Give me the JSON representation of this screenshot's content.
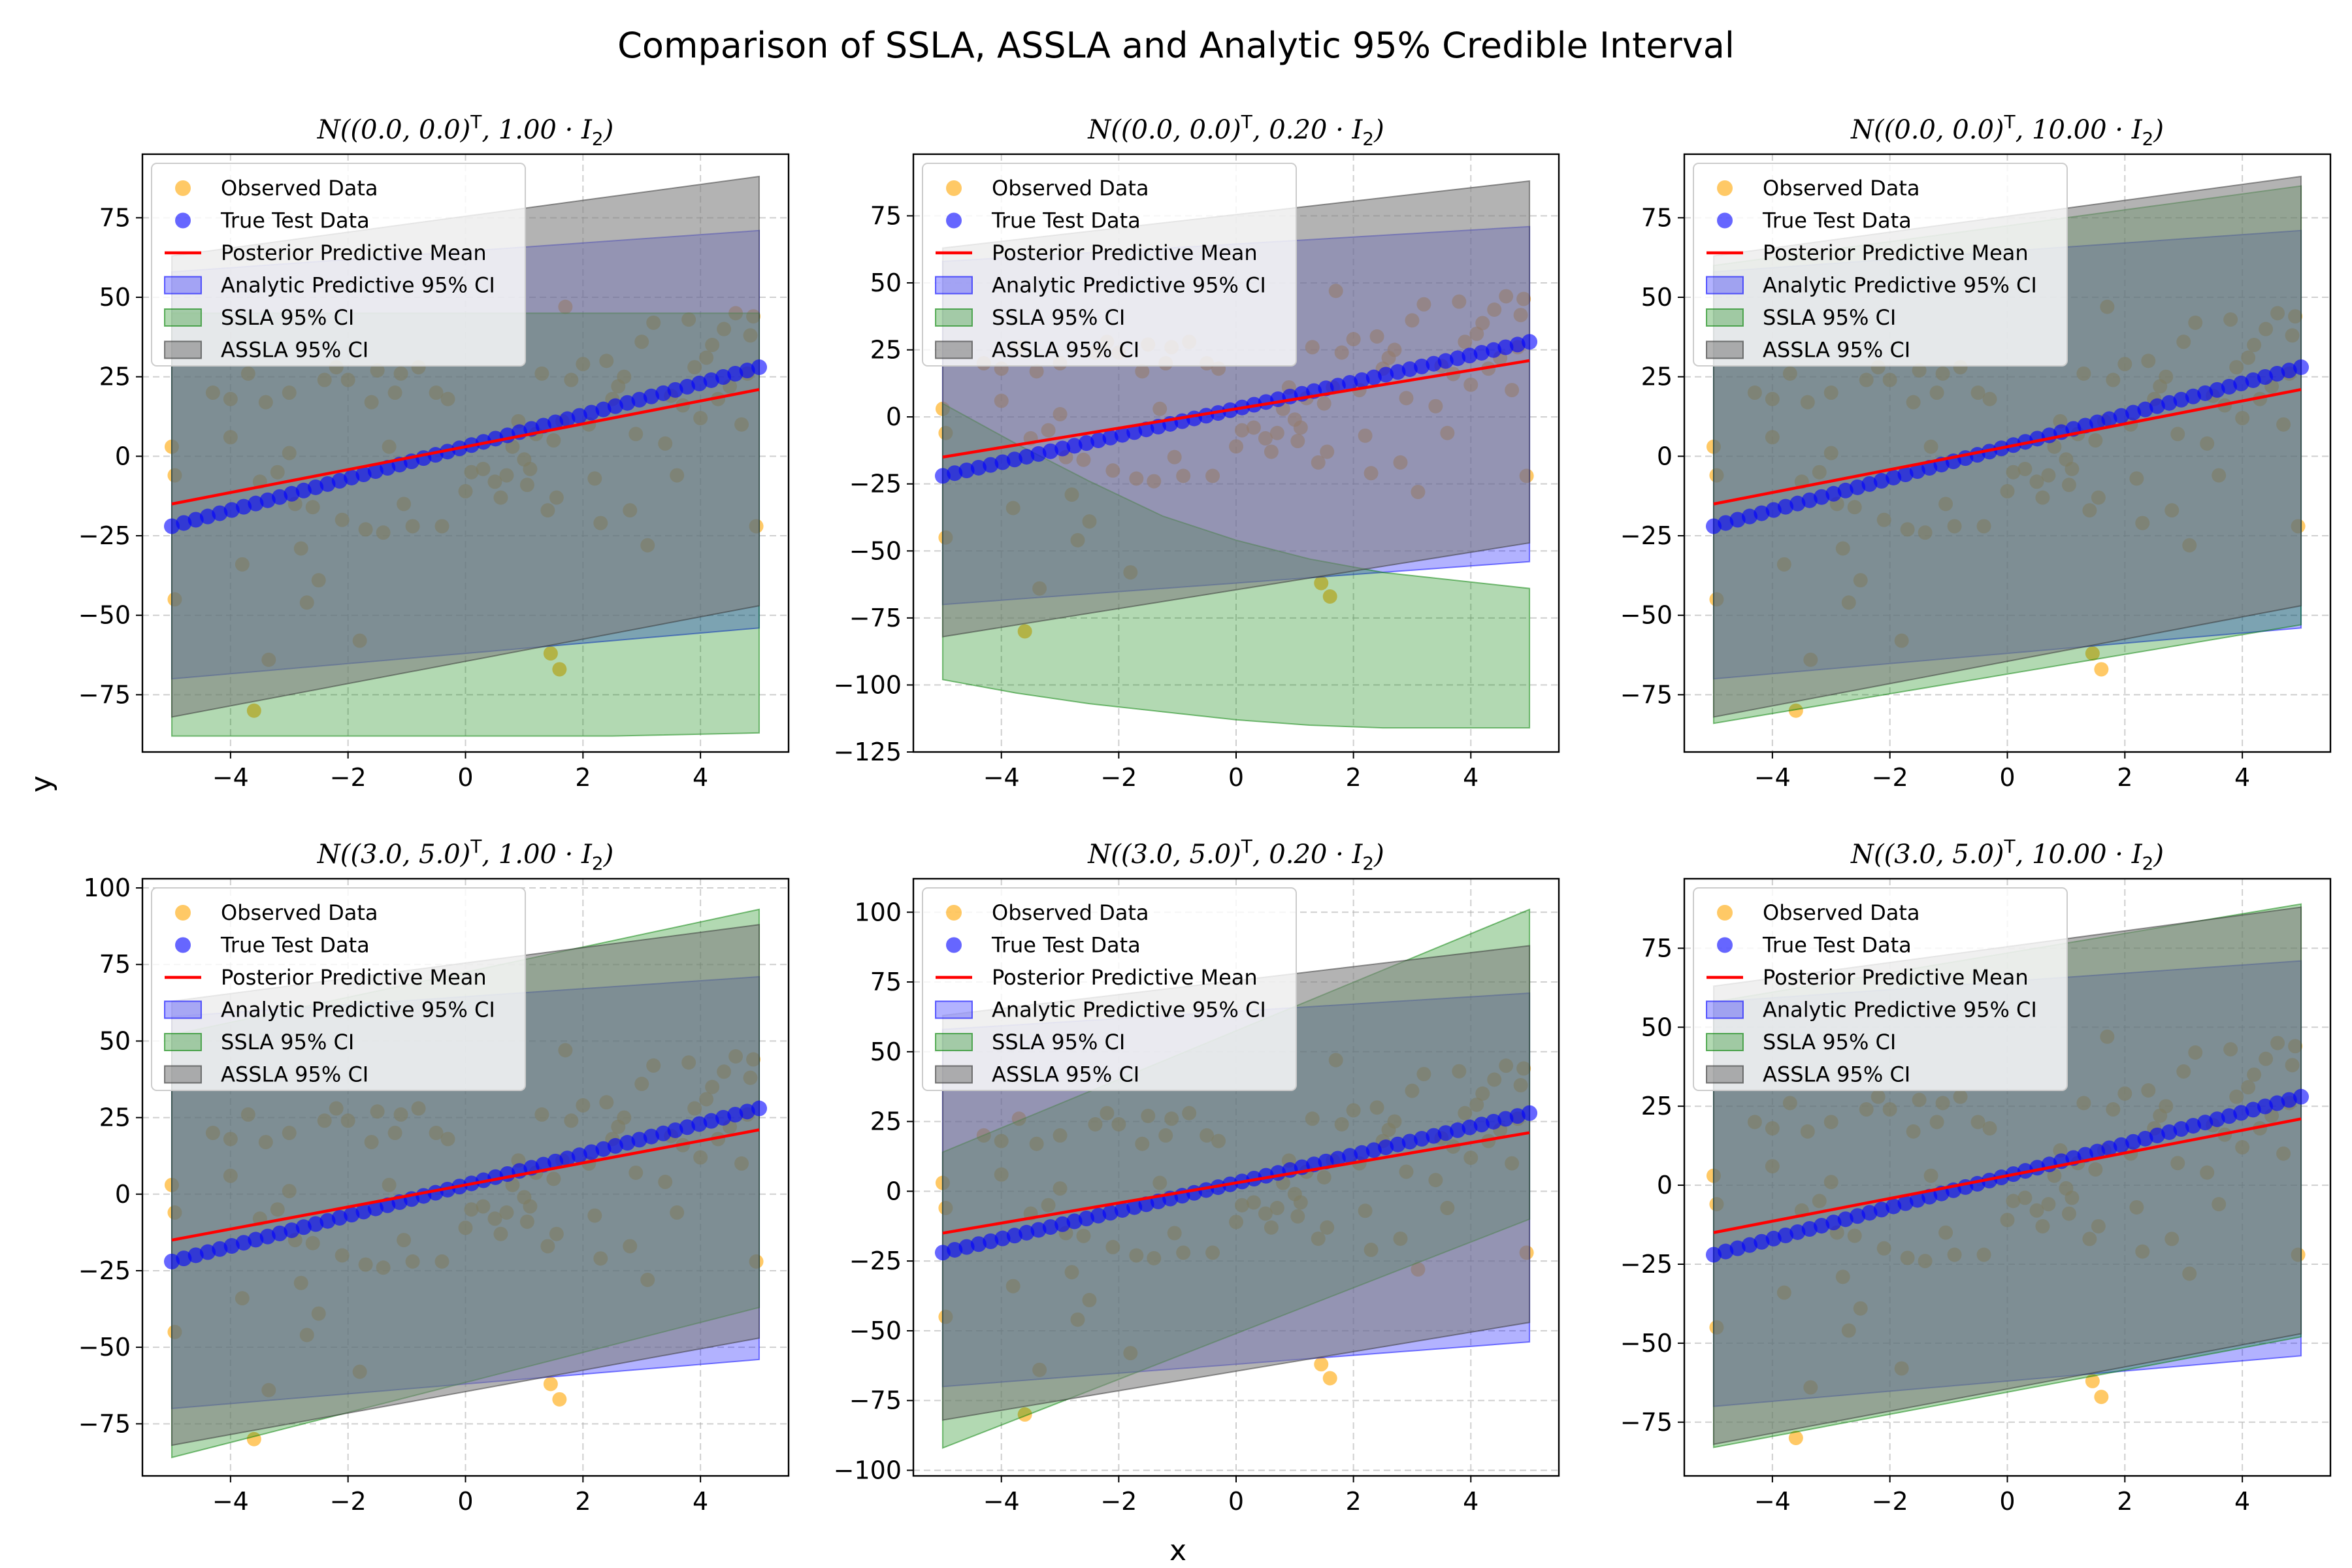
{
  "figure": {
    "title": "Comparison of SSLA, ASSLA and Analytic 95% Credible Interval",
    "xlabel": "x",
    "ylabel": "y"
  },
  "legend": [
    "Observed Data",
    "True Test Data",
    "Posterior Predictive Mean",
    "Analytic Predictive 95% CI",
    "SSLA 95% CI",
    "ASSLA 95% CI"
  ],
  "colors": {
    "observed": "#ffa500",
    "true": "#0000ff",
    "mean": "#ff0000",
    "analytic": "#0000ff",
    "ssla": "#008000",
    "assla": "#808080"
  },
  "chart_data": [
    {
      "type": "scatter",
      "title": "N((0.0, 0.0)^T, 1.00 · I_2)",
      "title_parts": [
        "N((0.0, 0.0)",
        "T",
        ", 1.00 · I",
        "2",
        ")"
      ],
      "xlim": [
        -5.5,
        5.5
      ],
      "ylim": [
        -93,
        95
      ],
      "xticks": [
        -4,
        -2,
        0,
        2,
        4
      ],
      "yticks": [
        -75,
        -50,
        -25,
        0,
        25,
        50,
        75
      ],
      "series": [
        {
          "name": "Analytic Predictive 95% CI",
          "x": [
            -5,
            5
          ],
          "lower": [
            -70,
            -54
          ],
          "upper": [
            58,
            71
          ]
        },
        {
          "name": "SSLA 95% CI",
          "x": [
            -5,
            -2.5,
            0,
            2.5,
            5
          ],
          "lower": [
            -88,
            -88,
            -88,
            -88,
            -87
          ],
          "upper": [
            45,
            45,
            45,
            45,
            45
          ]
        },
        {
          "name": "ASSLA 95% CI",
          "x": [
            -5,
            5
          ],
          "lower": [
            -82,
            -47
          ],
          "upper": [
            63,
            88
          ]
        }
      ]
    },
    {
      "type": "scatter",
      "title": "N((0.0, 0.0)^T, 0.20 · I_2)",
      "title_parts": [
        "N((0.0, 0.0)",
        "T",
        ", 0.20 · I",
        "2",
        ")"
      ],
      "xlim": [
        -5.5,
        5.5
      ],
      "ylim": [
        -125,
        98
      ],
      "xticks": [
        -4,
        -2,
        0,
        2,
        4
      ],
      "yticks": [
        -125,
        -100,
        -75,
        -50,
        -25,
        0,
        25,
        50,
        75
      ],
      "series": [
        {
          "name": "Analytic Predictive 95% CI",
          "x": [
            -5,
            5
          ],
          "lower": [
            -70,
            -54
          ],
          "upper": [
            58,
            71
          ]
        },
        {
          "name": "SSLA 95% CI",
          "x": [
            -5,
            -3.75,
            -2.5,
            -1.25,
            0,
            1.25,
            2.5,
            3.75,
            5
          ],
          "lower": [
            -98,
            -103,
            -107,
            -110,
            -113,
            -115,
            -116,
            -116,
            -116
          ],
          "upper": [
            5,
            -10,
            -24,
            -37,
            -46,
            -53,
            -58,
            -61,
            -64
          ]
        },
        {
          "name": "ASSLA 95% CI",
          "x": [
            -5,
            5
          ],
          "lower": [
            -82,
            -47
          ],
          "upper": [
            63,
            88
          ]
        }
      ]
    },
    {
      "type": "scatter",
      "title": "N((0.0, 0.0)^T, 10.00 · I_2)",
      "title_parts": [
        "N((0.0, 0.0)",
        "T",
        ", 10.00 · I",
        "2",
        ")"
      ],
      "xlim": [
        -5.5,
        5.5
      ],
      "ylim": [
        -93,
        95
      ],
      "xticks": [
        -4,
        -2,
        0,
        2,
        4
      ],
      "yticks": [
        -75,
        -50,
        -25,
        0,
        25,
        50,
        75
      ],
      "series": [
        {
          "name": "Analytic Predictive 95% CI",
          "x": [
            -5,
            5
          ],
          "lower": [
            -70,
            -54
          ],
          "upper": [
            58,
            71
          ]
        },
        {
          "name": "SSLA 95% CI",
          "x": [
            -5,
            5
          ],
          "lower": [
            -84,
            -53
          ],
          "upper": [
            60,
            85
          ]
        },
        {
          "name": "ASSLA 95% CI",
          "x": [
            -5,
            5
          ],
          "lower": [
            -82,
            -47
          ],
          "upper": [
            63,
            88
          ]
        }
      ]
    },
    {
      "type": "scatter",
      "title": "N((3.0, 5.0)^T, 1.00 · I_2)",
      "title_parts": [
        "N((3.0, 5.0)",
        "T",
        ", 1.00 · I",
        "2",
        ")"
      ],
      "xlim": [
        -5.5,
        5.5
      ],
      "ylim": [
        -92,
        103
      ],
      "xticks": [
        -4,
        -2,
        0,
        2,
        4
      ],
      "yticks": [
        -75,
        -50,
        -25,
        0,
        25,
        50,
        75,
        100
      ],
      "series": [
        {
          "name": "Analytic Predictive 95% CI",
          "x": [
            -5,
            5
          ],
          "lower": [
            -70,
            -54
          ],
          "upper": [
            58,
            71
          ]
        },
        {
          "name": "SSLA 95% CI",
          "x": [
            -5,
            5
          ],
          "lower": [
            -86,
            -37
          ],
          "upper": [
            52,
            93
          ]
        },
        {
          "name": "ASSLA 95% CI",
          "x": [
            -5,
            5
          ],
          "lower": [
            -82,
            -47
          ],
          "upper": [
            63,
            88
          ]
        }
      ]
    },
    {
      "type": "scatter",
      "title": "N((3.0, 5.0)^T, 0.20 · I_2)",
      "title_parts": [
        "N((3.0, 5.0)",
        "T",
        ", 0.20 · I",
        "2",
        ")"
      ],
      "xlim": [
        -5.5,
        5.5
      ],
      "ylim": [
        -102,
        112
      ],
      "xticks": [
        -4,
        -2,
        0,
        2,
        4
      ],
      "yticks": [
        -100,
        -75,
        -50,
        -25,
        0,
        25,
        50,
        75,
        100
      ],
      "series": [
        {
          "name": "Analytic Predictive 95% CI",
          "x": [
            -5,
            5
          ],
          "lower": [
            -70,
            -54
          ],
          "upper": [
            58,
            71
          ]
        },
        {
          "name": "SSLA 95% CI",
          "x": [
            -5,
            5
          ],
          "lower": [
            -92,
            -10
          ],
          "upper": [
            14,
            101
          ]
        },
        {
          "name": "ASSLA 95% CI",
          "x": [
            -5,
            5
          ],
          "lower": [
            -82,
            -47
          ],
          "upper": [
            63,
            88
          ]
        }
      ]
    },
    {
      "type": "scatter",
      "title": "N((3.0, 5.0)^T, 10.00 · I_2)",
      "title_parts": [
        "N((3.0, 5.0)",
        "T",
        ", 10.00 · I",
        "2",
        ")"
      ],
      "xlim": [
        -5.5,
        5.5
      ],
      "ylim": [
        -92,
        97
      ],
      "xticks": [
        -4,
        -2,
        0,
        2,
        4
      ],
      "yticks": [
        -75,
        -50,
        -25,
        0,
        25,
        50,
        75
      ],
      "series": [
        {
          "name": "Analytic Predictive 95% CI",
          "x": [
            -5,
            5
          ],
          "lower": [
            -70,
            -54
          ],
          "upper": [
            58,
            71
          ]
        },
        {
          "name": "SSLA 95% CI",
          "x": [
            -5,
            5
          ],
          "lower": [
            -83,
            -48
          ],
          "upper": [
            58,
            89
          ]
        },
        {
          "name": "ASSLA 95% CI",
          "x": [
            -5,
            5
          ],
          "lower": [
            -82,
            -47
          ],
          "upper": [
            63,
            88
          ]
        }
      ]
    }
  ],
  "shared_series": {
    "posterior_mean": {
      "name": "Posterior Predictive Mean",
      "x": [
        -5,
        5
      ],
      "y": [
        -15,
        21
      ]
    },
    "true_test": {
      "name": "True Test Data",
      "x_start": -5,
      "x_end": 5,
      "count": 50,
      "y_start": -22,
      "y_end": 28
    },
    "observed": {
      "name": "Observed Data",
      "points": [
        [
          -5.0,
          3
        ],
        [
          -4.95,
          -6
        ],
        [
          -4.95,
          -45
        ],
        [
          -4.3,
          20
        ],
        [
          -4.0,
          18
        ],
        [
          -4.0,
          6
        ],
        [
          -3.8,
          -34
        ],
        [
          -3.7,
          26
        ],
        [
          -3.6,
          -80
        ],
        [
          -3.5,
          -8
        ],
        [
          -3.4,
          17
        ],
        [
          -3.35,
          -64
        ],
        [
          -3.2,
          -5
        ],
        [
          -3.0,
          1
        ],
        [
          -3.0,
          20
        ],
        [
          -2.9,
          -15
        ],
        [
          -2.8,
          -29
        ],
        [
          -2.7,
          -46
        ],
        [
          -2.6,
          -16
        ],
        [
          -2.5,
          -39
        ],
        [
          -2.4,
          24
        ],
        [
          -2.2,
          28
        ],
        [
          -2.1,
          -20
        ],
        [
          -2.0,
          24
        ],
        [
          -1.8,
          -58
        ],
        [
          -1.7,
          -23
        ],
        [
          -1.6,
          17
        ],
        [
          -1.5,
          27
        ],
        [
          -1.4,
          -24
        ],
        [
          -1.3,
          3
        ],
        [
          -1.2,
          20
        ],
        [
          -1.1,
          26
        ],
        [
          -1.05,
          -15
        ],
        [
          -0.9,
          -22
        ],
        [
          -0.8,
          28
        ],
        [
          -0.5,
          20
        ],
        [
          -0.4,
          -22
        ],
        [
          -0.3,
          18
        ],
        [
          0.0,
          -11
        ],
        [
          0.1,
          -5
        ],
        [
          0.3,
          -4
        ],
        [
          0.5,
          -8
        ],
        [
          0.6,
          -13
        ],
        [
          0.7,
          -6
        ],
        [
          0.8,
          3
        ],
        [
          0.9,
          11
        ],
        [
          1.0,
          -1
        ],
        [
          1.05,
          -9
        ],
        [
          1.1,
          -4
        ],
        [
          1.2,
          7
        ],
        [
          1.3,
          26
        ],
        [
          1.4,
          -17
        ],
        [
          1.45,
          -62
        ],
        [
          1.5,
          5
        ],
        [
          1.55,
          -13
        ],
        [
          1.6,
          -67
        ],
        [
          1.65,
          11
        ],
        [
          1.7,
          47
        ],
        [
          1.8,
          24
        ],
        [
          2.0,
          29
        ],
        [
          2.1,
          10
        ],
        [
          2.2,
          -7
        ],
        [
          2.3,
          -21
        ],
        [
          2.4,
          30
        ],
        [
          2.5,
          18
        ],
        [
          2.6,
          22
        ],
        [
          2.7,
          25
        ],
        [
          2.8,
          -17
        ],
        [
          2.9,
          7
        ],
        [
          3.0,
          36
        ],
        [
          3.1,
          -28
        ],
        [
          3.2,
          42
        ],
        [
          3.4,
          4
        ],
        [
          3.5,
          19
        ],
        [
          3.6,
          -6
        ],
        [
          3.7,
          16
        ],
        [
          3.8,
          43
        ],
        [
          3.9,
          28
        ],
        [
          4.0,
          12
        ],
        [
          4.1,
          31
        ],
        [
          4.2,
          35
        ],
        [
          4.3,
          18
        ],
        [
          4.4,
          40
        ],
        [
          4.5,
          22
        ],
        [
          4.6,
          45
        ],
        [
          4.7,
          10
        ],
        [
          4.8,
          26
        ],
        [
          4.85,
          38
        ],
        [
          4.9,
          44
        ],
        [
          4.95,
          -22
        ]
      ]
    }
  }
}
